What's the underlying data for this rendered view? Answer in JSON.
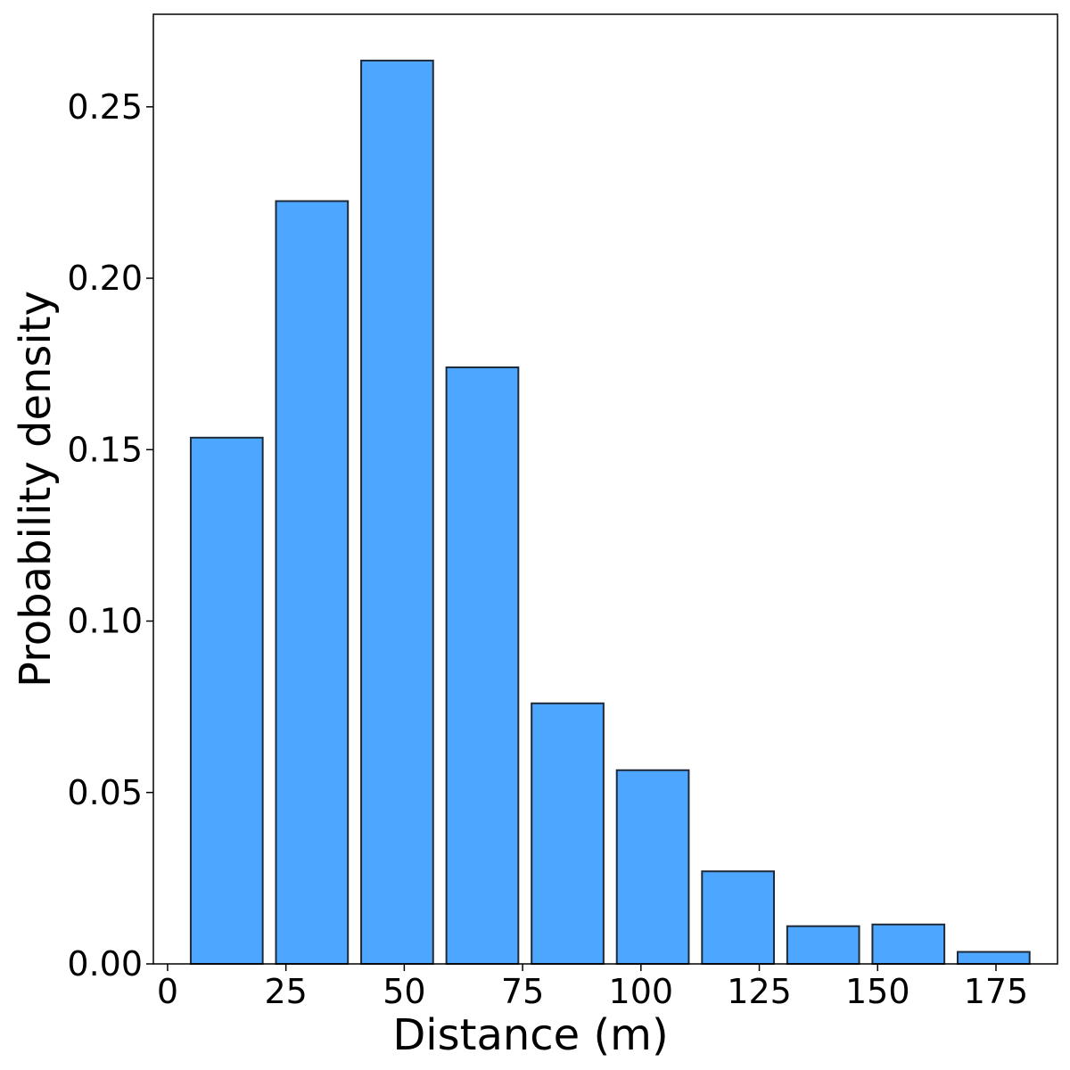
{
  "chart_data": {
    "type": "bar",
    "title": "",
    "xlabel": "Distance (m)",
    "ylabel": "Probability density",
    "bar_color": "#4da6ff",
    "edge_color": "#1f2a38",
    "bin_width": 18,
    "bin_centers": [
      12.5,
      30.5,
      48.5,
      66.5,
      84.5,
      102.5,
      120.5,
      138.5,
      156.5,
      174.5
    ],
    "values": [
      0.1535,
      0.2225,
      0.2635,
      0.174,
      0.076,
      0.0565,
      0.027,
      0.011,
      0.0115,
      0.0035
    ],
    "xlim": [
      -3,
      188
    ],
    "ylim": [
      0,
      0.277
    ],
    "xticks": [
      0,
      25,
      50,
      75,
      100,
      125,
      150,
      175
    ],
    "xtick_labels": [
      "0",
      "25",
      "50",
      "75",
      "100",
      "125",
      "150",
      "175"
    ],
    "yticks": [
      0,
      0.05,
      0.1,
      0.15,
      0.2,
      0.25
    ],
    "ytick_labels": [
      "0.00",
      "0.05",
      "0.10",
      "0.15",
      "0.20",
      "0.25"
    ],
    "grid": false,
    "legend": "none"
  }
}
